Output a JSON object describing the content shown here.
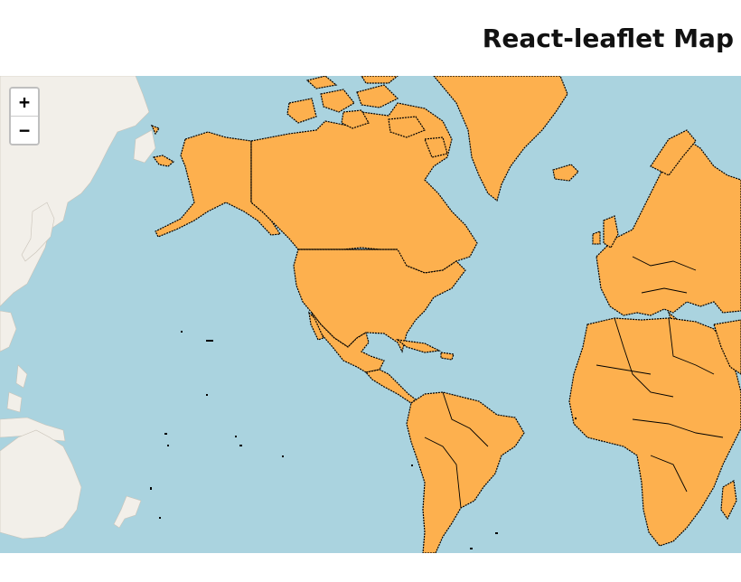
{
  "header": {
    "title": "React-leaflet Map"
  },
  "map": {
    "zoom_in_label": "+",
    "zoom_out_label": "−",
    "colors": {
      "water": "#aad3df",
      "basemap_land": "#f2efe9",
      "country_fill": "#fdb04e",
      "country_border": "#000000"
    }
  }
}
